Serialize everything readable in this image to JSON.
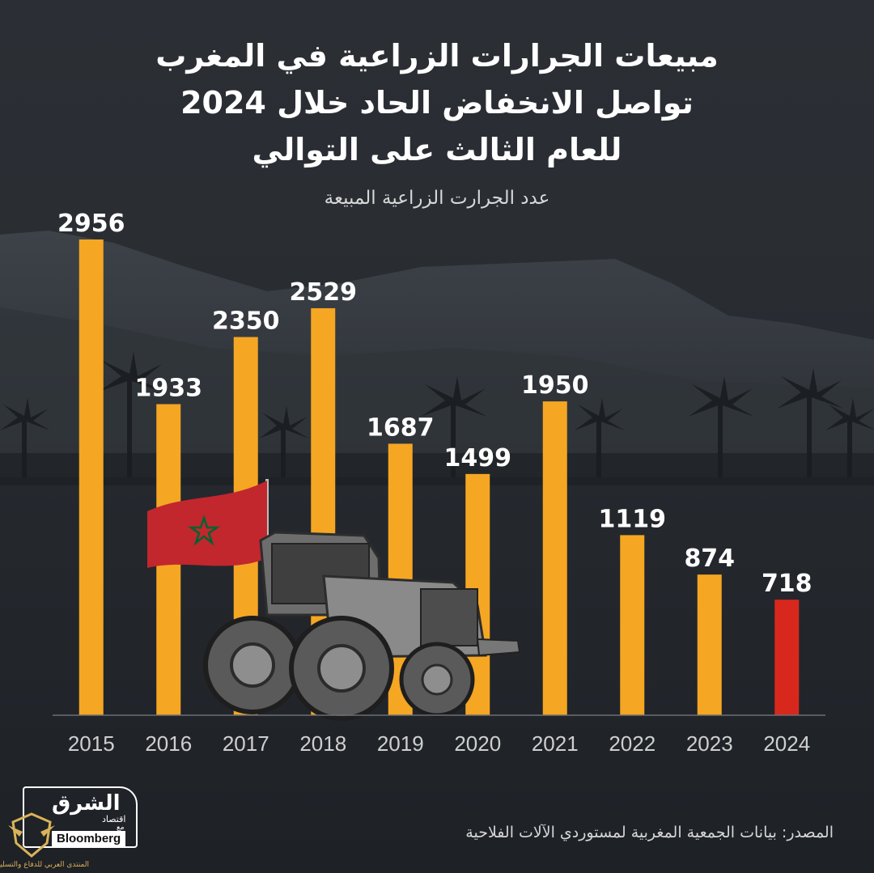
{
  "title": {
    "lines": [
      "مبيعات الجرارات الزراعية في المغرب",
      "تواصل الانخفاض الحاد خلال 2024",
      "للعام الثالث على التوالي"
    ]
  },
  "subtitle": "عدد الجرارت الزراعية المبيعة",
  "source": "المصدر: بيانات الجمعية المغربية لمستوردي الآلات الفلاحية",
  "logo": {
    "main": "الشرق",
    "sub": "اقتصاد",
    "with": "مع",
    "partner": "Bloomberg"
  },
  "watermark": {
    "text": "المنتدى العربي للدفاع والتسليح"
  },
  "colors": {
    "bar": "#f5a623",
    "highlight": "#d8281d",
    "label": "#ffffff",
    "axis": "#cfcfcf",
    "flag": "#c1272d",
    "flag_star": "#006233"
  },
  "chart_data": {
    "type": "bar",
    "categories": [
      "2015",
      "2016",
      "2017",
      "2018",
      "2019",
      "2020",
      "2021",
      "2022",
      "2023",
      "2024"
    ],
    "values": [
      2956,
      1933,
      2350,
      2529,
      1687,
      1499,
      1950,
      1119,
      874,
      718
    ],
    "highlight_index": 9,
    "ylim": [
      0,
      2956
    ],
    "grid": false,
    "data_labels": true,
    "xlabel": "",
    "ylabel": ""
  }
}
